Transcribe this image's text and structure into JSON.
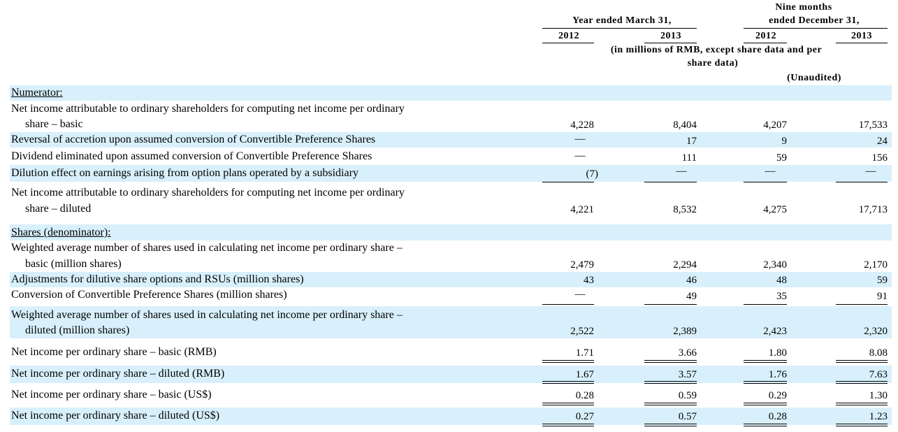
{
  "header": {
    "nine_months_line1": "Nine months",
    "nine_months_line2": "ended December 31,",
    "year_ended": "Year ended March 31,",
    "years": [
      "2012",
      "2013",
      "2012",
      "2013"
    ],
    "units_line1": "(in millions of RMB, except share data and per",
    "units_line2": "share data)",
    "unaudited": "(Unaudited)"
  },
  "sections": {
    "numerator": "Numerator:",
    "denominator": "Shares (denominator):"
  },
  "rows": {
    "ni_basic": {
      "label1": "Net income attributable to ordinary shareholders for computing net income per ordinary",
      "label2": "share – basic",
      "values": [
        "4,228",
        "8,404",
        "4,207",
        "17,533"
      ]
    },
    "accretion": {
      "label": "Reversal of accretion upon assumed conversion of Convertible Preference Shares",
      "values": [
        "—",
        "17",
        "9",
        "24"
      ]
    },
    "dividend": {
      "label": "Dividend eliminated upon assumed conversion of Convertible Preference Shares",
      "values": [
        "—",
        "111",
        "59",
        "156"
      ]
    },
    "dilution": {
      "label": "Dilution effect on earnings arising from option plans operated by a subsidiary",
      "values": [
        "(7)",
        "—",
        "—",
        "—"
      ]
    },
    "ni_diluted": {
      "label1": "Net income attributable to ordinary shareholders for computing net income per ordinary",
      "label2": "share – diluted",
      "values": [
        "4,221",
        "8,532",
        "4,275",
        "17,713"
      ]
    },
    "wa_basic": {
      "label1": "Weighted average number of shares used in calculating net income per ordinary share –",
      "label2": "basic (million shares)",
      "values": [
        "2,479",
        "2,294",
        "2,340",
        "2,170"
      ]
    },
    "adjustments": {
      "label": "Adjustments for dilutive share options and RSUs (million shares)",
      "values": [
        "43",
        "46",
        "48",
        "59"
      ]
    },
    "conversion": {
      "label": "Conversion of Convertible Preference Shares (million shares)",
      "values": [
        "—",
        "49",
        "35",
        "91"
      ]
    },
    "wa_diluted": {
      "label1": "Weighted average number of shares used in calculating net income per ordinary share –",
      "label2": "diluted (million shares)",
      "values": [
        "2,522",
        "2,389",
        "2,423",
        "2,320"
      ]
    },
    "eps_basic_rmb": {
      "label": "Net income per ordinary share – basic (RMB)",
      "values": [
        "1.71",
        "3.66",
        "1.80",
        "8.08"
      ]
    },
    "eps_diluted_rmb": {
      "label": "Net income per ordinary share – diluted (RMB)",
      "values": [
        "1.67",
        "3.57",
        "1.76",
        "7.63"
      ]
    },
    "eps_basic_usd": {
      "label": "Net income per ordinary share – basic (US$)",
      "values": [
        "0.28",
        "0.59",
        "0.29",
        "1.30"
      ]
    },
    "eps_diluted_usd": {
      "label": "Net income per ordinary share – diluted (US$)",
      "values": [
        "0.27",
        "0.57",
        "0.28",
        "1.23"
      ]
    }
  },
  "colors": {
    "band": "#d8f0fb"
  }
}
